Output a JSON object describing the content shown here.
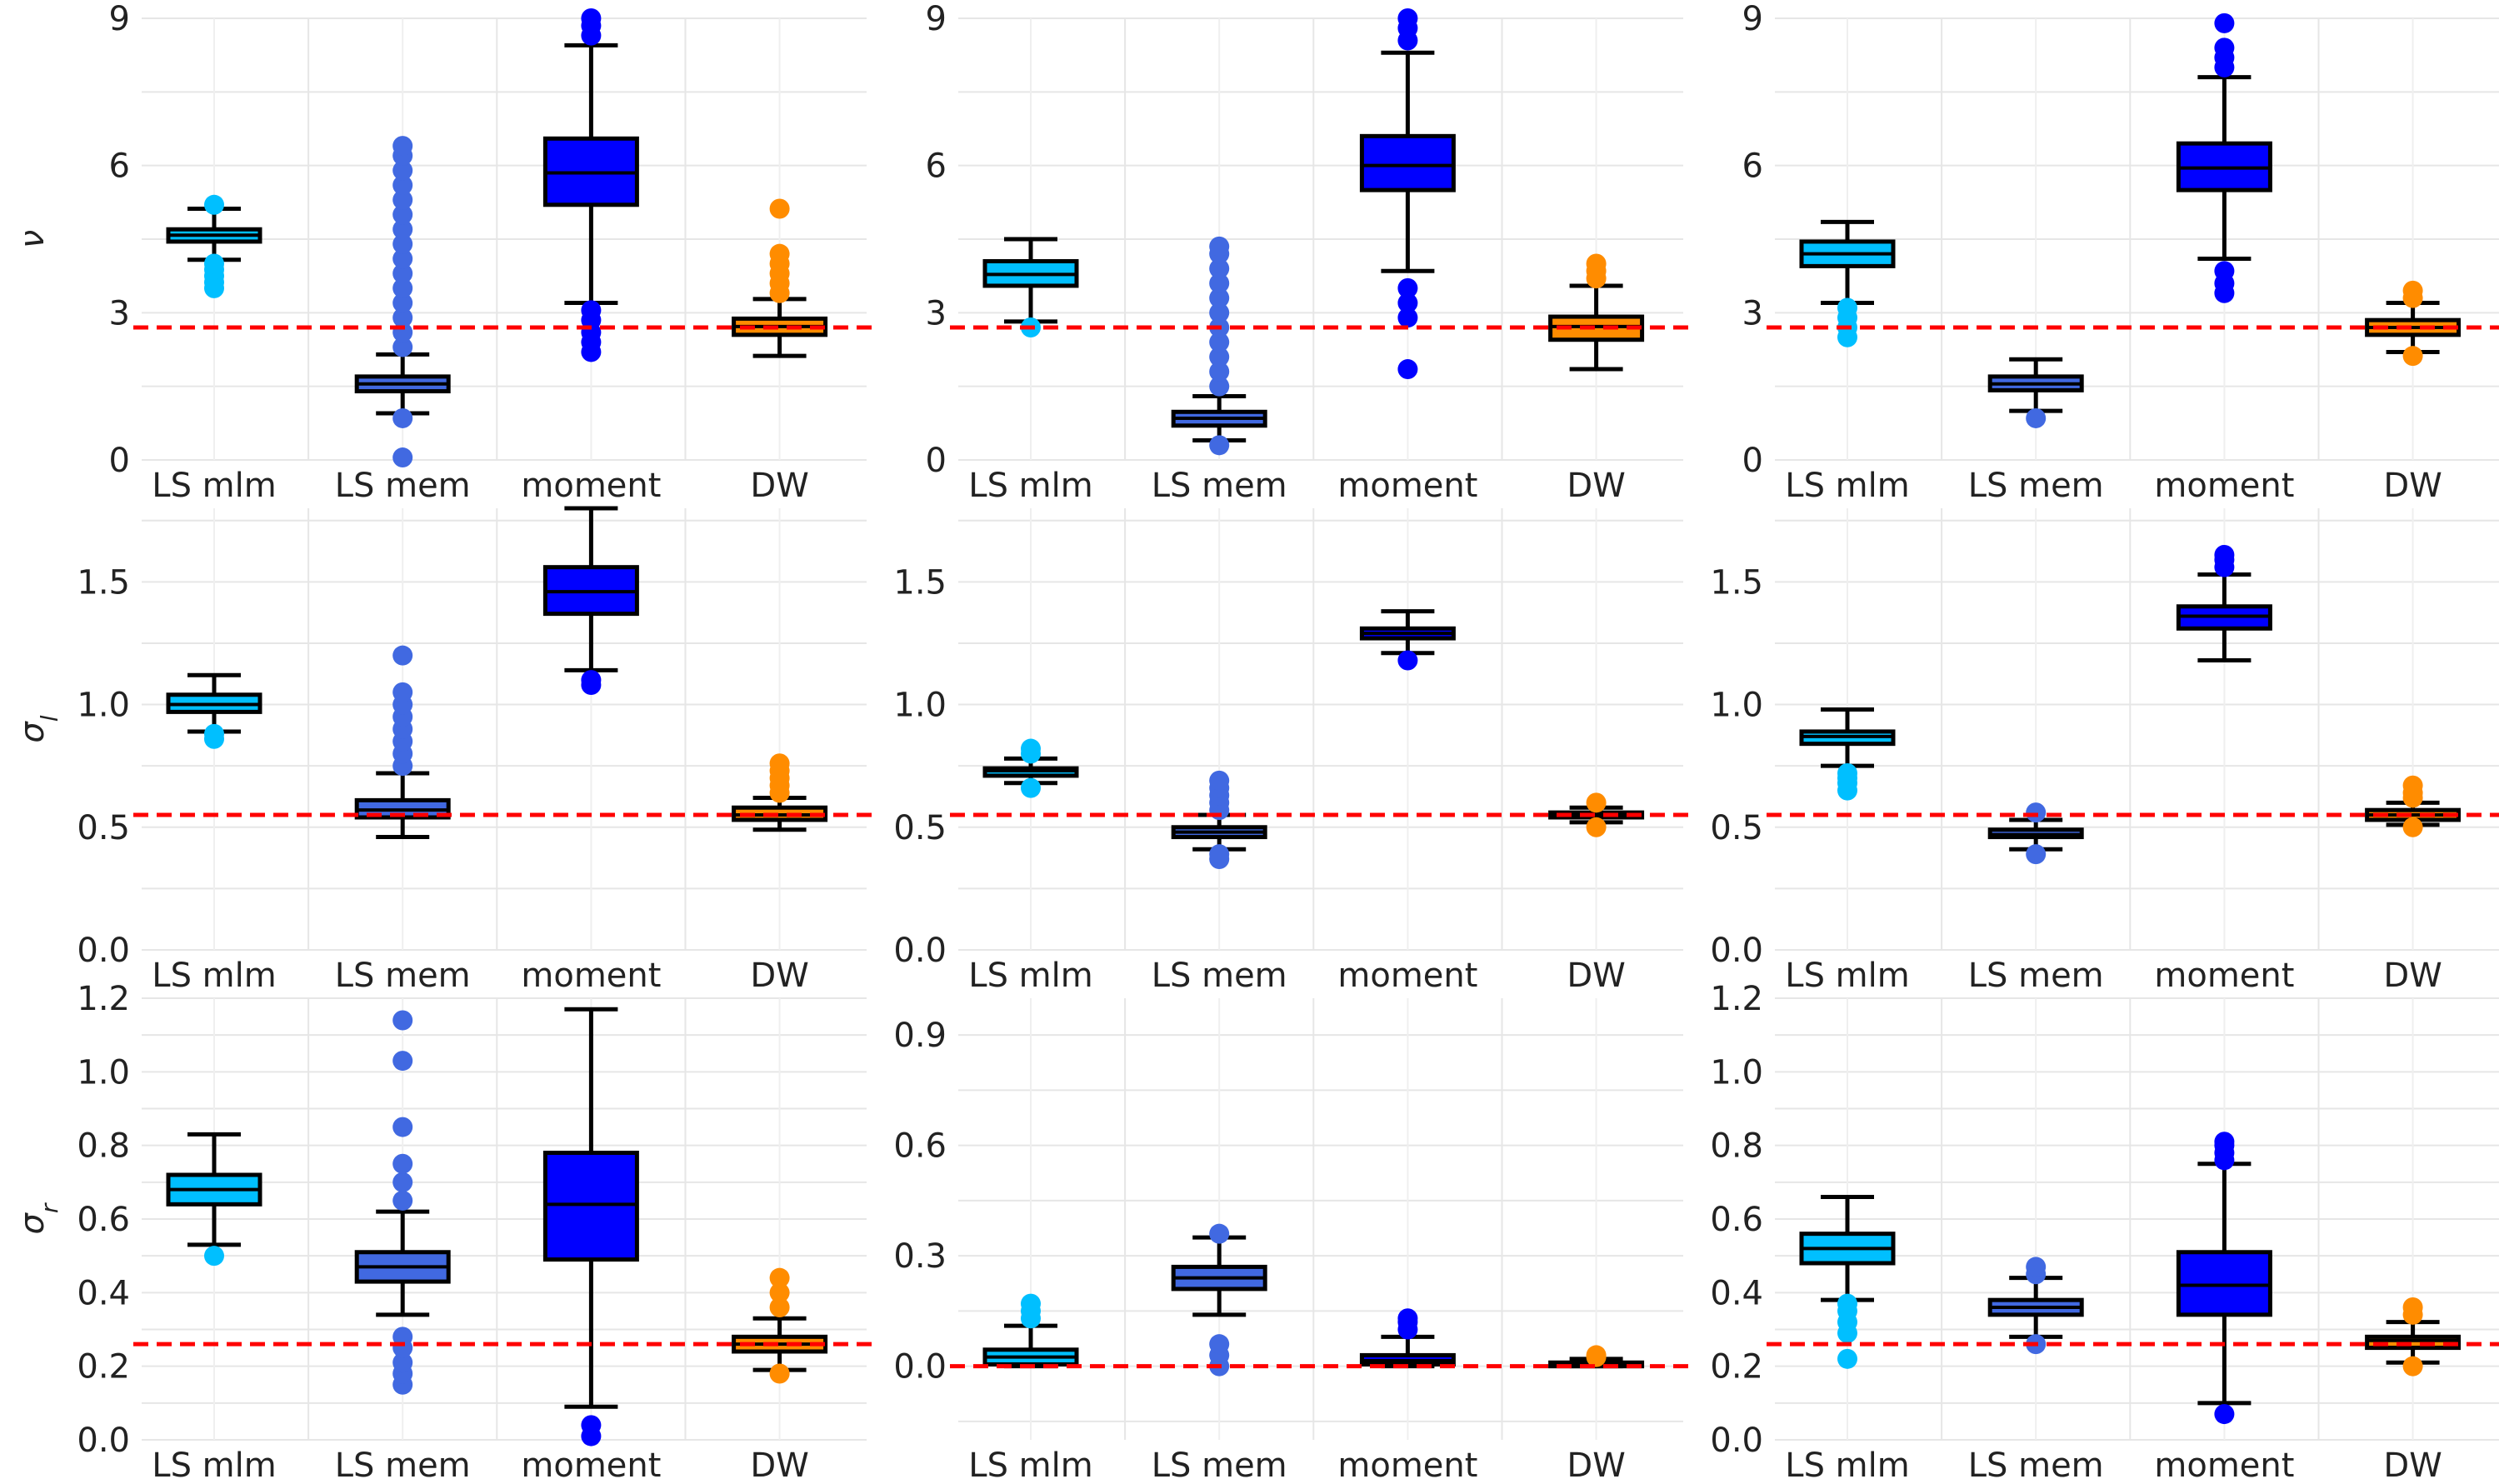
{
  "figure": {
    "categories": [
      "LS mlm",
      "LS mem",
      "moment",
      "DW"
    ],
    "colors": {
      "LS mlm": "#00BFFF",
      "LS mem": "#4169E1",
      "moment": "#0000FF",
      "DW": "#FF8C00",
      "reference_line": "#FF0000",
      "box_edge": "#000000",
      "grid": "#E6E6E6"
    },
    "ylabels": [
      "ν",
      "σ_l",
      "σ_r"
    ]
  },
  "chart_data": [
    {
      "type": "box",
      "row": 0,
      "col": 0,
      "ylabel": "ν",
      "ylim": [
        0,
        9
      ],
      "yticks": [
        0,
        3,
        6,
        9
      ],
      "grid": true,
      "reference_line": 2.7,
      "categories": [
        "LS mlm",
        "LS mem",
        "moment",
        "DW"
      ],
      "series": [
        {
          "q1": 4.45,
          "median": 4.58,
          "q3": 4.7,
          "whisker_low": 4.08,
          "whisker_high": 5.12,
          "outliers": [
            3.5,
            3.62,
            3.75,
            3.88,
            4.0,
            5.2
          ]
        },
        {
          "q1": 1.4,
          "median": 1.55,
          "q3": 1.7,
          "whisker_low": 0.95,
          "whisker_high": 2.15,
          "outliers": [
            0.05,
            0.85,
            2.3,
            2.6,
            2.9,
            3.2,
            3.5,
            3.8,
            4.1,
            4.4,
            4.7,
            5.0,
            5.3,
            5.6,
            5.9,
            6.2,
            6.4
          ]
        },
        {
          "q1": 5.2,
          "median": 5.85,
          "q3": 6.55,
          "whisker_low": 3.2,
          "whisker_high": 8.45,
          "outliers": [
            2.2,
            2.4,
            2.6,
            2.85,
            3.05,
            8.65,
            8.85,
            9.0
          ]
        },
        {
          "q1": 2.55,
          "median": 2.72,
          "q3": 2.88,
          "whisker_low": 2.12,
          "whisker_high": 3.28,
          "outliers": [
            3.4,
            3.6,
            3.8,
            4.0,
            4.2,
            5.12
          ]
        }
      ]
    },
    {
      "type": "box",
      "row": 0,
      "col": 1,
      "ylabel": "",
      "ylim": [
        0,
        9
      ],
      "yticks": [
        0,
        3,
        6,
        9
      ],
      "grid": true,
      "reference_line": 2.7,
      "categories": [
        "LS mlm",
        "LS mem",
        "moment",
        "DW"
      ],
      "series": [
        {
          "q1": 3.55,
          "median": 3.78,
          "q3": 4.05,
          "whisker_low": 2.82,
          "whisker_high": 4.5,
          "outliers": [
            2.7
          ]
        },
        {
          "q1": 0.7,
          "median": 0.85,
          "q3": 0.98,
          "whisker_low": 0.4,
          "whisker_high": 1.3,
          "outliers": [
            0.3,
            1.5,
            1.8,
            2.1,
            2.4,
            2.7,
            3.0,
            3.3,
            3.6,
            3.9,
            4.2,
            4.35
          ]
        },
        {
          "q1": 5.5,
          "median": 6.0,
          "q3": 6.6,
          "whisker_low": 3.85,
          "whisker_high": 8.3,
          "outliers": [
            1.85,
            2.9,
            3.2,
            3.5,
            8.55,
            8.8,
            9.0
          ]
        },
        {
          "q1": 2.45,
          "median": 2.72,
          "q3": 2.92,
          "whisker_low": 1.85,
          "whisker_high": 3.55,
          "outliers": [
            3.7,
            3.85,
            4.0
          ]
        }
      ]
    },
    {
      "type": "box",
      "row": 0,
      "col": 2,
      "ylabel": "",
      "ylim": [
        0,
        9
      ],
      "yticks": [
        0,
        3,
        6,
        9
      ],
      "grid": true,
      "reference_line": 2.7,
      "categories": [
        "LS mlm",
        "LS mem",
        "moment",
        "DW"
      ],
      "series": [
        {
          "q1": 3.95,
          "median": 4.2,
          "q3": 4.45,
          "whisker_low": 3.2,
          "whisker_high": 4.85,
          "outliers": [
            2.5,
            2.7,
            2.9,
            3.1
          ]
        },
        {
          "q1": 1.42,
          "median": 1.55,
          "q3": 1.7,
          "whisker_low": 1.0,
          "whisker_high": 2.05,
          "outliers": [
            0.85
          ]
        },
        {
          "q1": 5.5,
          "median": 5.95,
          "q3": 6.45,
          "whisker_low": 4.1,
          "whisker_high": 7.8,
          "outliers": [
            3.4,
            3.6,
            3.85,
            8.0,
            8.2,
            8.4,
            8.9
          ]
        },
        {
          "q1": 2.55,
          "median": 2.7,
          "q3": 2.85,
          "whisker_low": 2.2,
          "whisker_high": 3.2,
          "outliers": [
            2.12,
            3.3,
            3.45
          ]
        }
      ]
    },
    {
      "type": "box",
      "row": 1,
      "col": 0,
      "ylabel": "σ_l",
      "ylim": [
        0,
        1.8
      ],
      "yticks": [
        0.0,
        0.5,
        1.0,
        1.5
      ],
      "grid": true,
      "reference_line": 0.55,
      "categories": [
        "LS mlm",
        "LS mem",
        "moment",
        "DW"
      ],
      "series": [
        {
          "q1": 0.97,
          "median": 1.0,
          "q3": 1.04,
          "whisker_low": 0.89,
          "whisker_high": 1.12,
          "outliers": [
            0.86,
            0.88
          ]
        },
        {
          "q1": 0.54,
          "median": 0.57,
          "q3": 0.61,
          "whisker_low": 0.46,
          "whisker_high": 0.72,
          "outliers": [
            0.75,
            0.8,
            0.85,
            0.9,
            0.95,
            1.0,
            1.05,
            1.2
          ]
        },
        {
          "q1": 1.37,
          "median": 1.46,
          "q3": 1.56,
          "whisker_low": 1.14,
          "whisker_high": 1.8,
          "outliers": [
            1.08,
            1.1
          ]
        },
        {
          "q1": 0.53,
          "median": 0.55,
          "q3": 0.58,
          "whisker_low": 0.49,
          "whisker_high": 0.62,
          "outliers": [
            0.64,
            0.67,
            0.7,
            0.73,
            0.76
          ]
        }
      ]
    },
    {
      "type": "box",
      "row": 1,
      "col": 1,
      "ylabel": "",
      "ylim": [
        0,
        1.8
      ],
      "yticks": [
        0.0,
        0.5,
        1.0,
        1.5
      ],
      "grid": true,
      "reference_line": 0.55,
      "categories": [
        "LS mlm",
        "LS mem",
        "moment",
        "DW"
      ],
      "series": [
        {
          "q1": 0.71,
          "median": 0.73,
          "q3": 0.74,
          "whisker_low": 0.68,
          "whisker_high": 0.78,
          "outliers": [
            0.66,
            0.8,
            0.82
          ]
        },
        {
          "q1": 0.46,
          "median": 0.48,
          "q3": 0.5,
          "whisker_low": 0.41,
          "whisker_high": 0.55,
          "outliers": [
            0.37,
            0.39,
            0.57,
            0.6,
            0.63,
            0.66,
            0.69
          ]
        },
        {
          "q1": 1.27,
          "median": 1.29,
          "q3": 1.31,
          "whisker_low": 1.21,
          "whisker_high": 1.38,
          "outliers": [
            1.18
          ]
        },
        {
          "q1": 0.54,
          "median": 0.55,
          "q3": 0.56,
          "whisker_low": 0.52,
          "whisker_high": 0.58,
          "outliers": [
            0.5,
            0.6
          ]
        }
      ]
    },
    {
      "type": "box",
      "row": 1,
      "col": 2,
      "ylabel": "",
      "ylim": [
        0,
        1.8
      ],
      "yticks": [
        0.0,
        0.5,
        1.0,
        1.5
      ],
      "grid": true,
      "reference_line": 0.55,
      "categories": [
        "LS mlm",
        "LS mem",
        "moment",
        "DW"
      ],
      "series": [
        {
          "q1": 0.84,
          "median": 0.87,
          "q3": 0.89,
          "whisker_low": 0.75,
          "whisker_high": 0.98,
          "outliers": [
            0.65,
            0.68,
            0.7,
            0.72
          ]
        },
        {
          "q1": 0.46,
          "median": 0.47,
          "q3": 0.49,
          "whisker_low": 0.41,
          "whisker_high": 0.53,
          "outliers": [
            0.39,
            0.56
          ]
        },
        {
          "q1": 1.31,
          "median": 1.36,
          "q3": 1.4,
          "whisker_low": 1.18,
          "whisker_high": 1.53,
          "outliers": [
            1.56,
            1.59,
            1.61
          ]
        },
        {
          "q1": 0.53,
          "median": 0.55,
          "q3": 0.57,
          "whisker_low": 0.51,
          "whisker_high": 0.6,
          "outliers": [
            0.5,
            0.62,
            0.64,
            0.67
          ]
        }
      ]
    },
    {
      "type": "box",
      "row": 2,
      "col": 0,
      "ylabel": "σ_r",
      "ylim": [
        0,
        1.2
      ],
      "yticks": [
        0.0,
        0.2,
        0.4,
        0.6,
        0.8,
        1.0,
        1.2
      ],
      "grid": true,
      "reference_line": 0.26,
      "categories": [
        "LS mlm",
        "LS mem",
        "moment",
        "DW"
      ],
      "series": [
        {
          "q1": 0.64,
          "median": 0.68,
          "q3": 0.72,
          "whisker_low": 0.53,
          "whisker_high": 0.83,
          "outliers": [
            0.5
          ]
        },
        {
          "q1": 0.43,
          "median": 0.47,
          "q3": 0.51,
          "whisker_low": 0.34,
          "whisker_high": 0.62,
          "outliers": [
            0.15,
            0.18,
            0.21,
            0.25,
            0.28,
            0.65,
            0.7,
            0.75,
            0.85,
            1.03,
            1.14
          ]
        },
        {
          "q1": 0.49,
          "median": 0.64,
          "q3": 0.78,
          "whisker_low": 0.09,
          "whisker_high": 1.17,
          "outliers": [
            0.01,
            0.04
          ]
        },
        {
          "q1": 0.24,
          "median": 0.26,
          "q3": 0.28,
          "whisker_low": 0.19,
          "whisker_high": 0.33,
          "outliers": [
            0.18,
            0.36,
            0.4,
            0.44
          ]
        }
      ]
    },
    {
      "type": "box",
      "row": 2,
      "col": 1,
      "ylabel": "",
      "ylim": [
        -0.2,
        1.0
      ],
      "yticks": [
        0.0,
        0.3,
        0.6,
        0.9
      ],
      "grid": true,
      "reference_line": 0.0,
      "categories": [
        "LS mlm",
        "LS mem",
        "moment",
        "DW"
      ],
      "series": [
        {
          "q1": 0.005,
          "median": 0.025,
          "q3": 0.045,
          "whisker_low": 0.0,
          "whisker_high": 0.11,
          "outliers": [
            0.13,
            0.15,
            0.17
          ]
        },
        {
          "q1": 0.21,
          "median": 0.24,
          "q3": 0.27,
          "whisker_low": 0.14,
          "whisker_high": 0.35,
          "outliers": [
            0.0,
            0.03,
            0.06,
            0.36
          ]
        },
        {
          "q1": 0.005,
          "median": 0.015,
          "q3": 0.03,
          "whisker_low": 0.0,
          "whisker_high": 0.08,
          "outliers": [
            0.1,
            0.12,
            0.13
          ]
        },
        {
          "q1": 0.0,
          "median": 0.005,
          "q3": 0.01,
          "whisker_low": 0.0,
          "whisker_high": 0.02,
          "outliers": [
            0.025,
            0.03
          ]
        }
      ]
    },
    {
      "type": "box",
      "row": 2,
      "col": 2,
      "ylabel": "",
      "ylim": [
        0,
        1.2
      ],
      "yticks": [
        0.0,
        0.2,
        0.4,
        0.6,
        0.8,
        1.0,
        1.2
      ],
      "grid": true,
      "reference_line": 0.26,
      "categories": [
        "LS mlm",
        "LS mem",
        "moment",
        "DW"
      ],
      "series": [
        {
          "q1": 0.48,
          "median": 0.52,
          "q3": 0.56,
          "whisker_low": 0.38,
          "whisker_high": 0.66,
          "outliers": [
            0.22,
            0.29,
            0.32,
            0.35,
            0.37
          ]
        },
        {
          "q1": 0.34,
          "median": 0.36,
          "q3": 0.38,
          "whisker_low": 0.28,
          "whisker_high": 0.44,
          "outliers": [
            0.26,
            0.45,
            0.47
          ]
        },
        {
          "q1": 0.34,
          "median": 0.42,
          "q3": 0.51,
          "whisker_low": 0.1,
          "whisker_high": 0.75,
          "outliers": [
            0.07,
            0.76,
            0.78,
            0.8,
            0.81
          ]
        },
        {
          "q1": 0.25,
          "median": 0.27,
          "q3": 0.28,
          "whisker_low": 0.21,
          "whisker_high": 0.32,
          "outliers": [
            0.2,
            0.34,
            0.36
          ]
        }
      ]
    }
  ]
}
